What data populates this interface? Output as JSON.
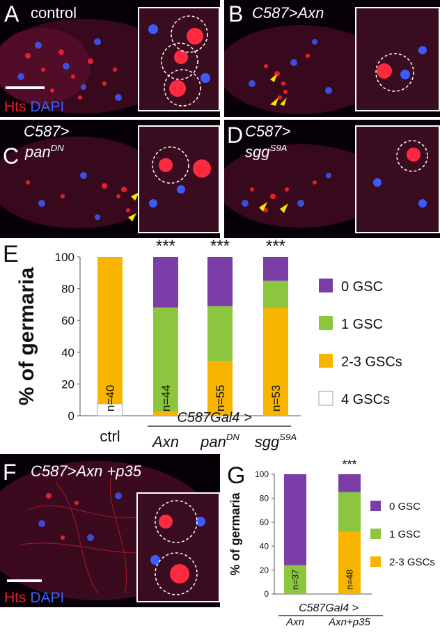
{
  "panels": {
    "A": {
      "letter": "A",
      "title": "control",
      "stain_hts": "Hts",
      "stain_dapi": "DAPI"
    },
    "B": {
      "letter": "B",
      "title": "C587>Axn"
    },
    "C": {
      "letter": "C",
      "title_line1": "C587>",
      "title_base": "pan",
      "title_sup": "DN"
    },
    "D": {
      "letter": "D",
      "title_line1": "C587>",
      "title_base": "sgg",
      "title_sup": "S9A"
    },
    "F": {
      "letter": "F",
      "title": "C587>Axn +p35",
      "stain_hts": "Hts",
      "stain_dapi": "DAPI"
    }
  },
  "colors": {
    "gsc0": "#7a3ea6",
    "gsc1": "#8cc63f",
    "gsc23": "#f7b500",
    "gsc4": "#ffffff"
  },
  "chart_data": [
    {
      "panel": "E",
      "type": "bar",
      "stacked": true,
      "ylabel": "% of germaria",
      "ylim": [
        0,
        100
      ],
      "yticks": [
        0,
        20,
        40,
        60,
        80,
        100
      ],
      "categories": [
        "ctrl",
        "Axn",
        "panDN",
        "sggS9A"
      ],
      "category_labels": [
        {
          "base": "ctrl",
          "sup": ""
        },
        {
          "base": "Axn",
          "sup": ""
        },
        {
          "base": "pan",
          "sup": "DN"
        },
        {
          "base": "sgg",
          "sup": "S9A"
        }
      ],
      "group_label": "C587Gal4 >",
      "series": [
        {
          "name": "4 GSCs",
          "values": [
            7.5,
            0,
            0,
            0
          ]
        },
        {
          "name": "2-3 GSCs",
          "values": [
            92.5,
            2.3,
            34.5,
            68
          ]
        },
        {
          "name": "1 GSC",
          "values": [
            0,
            65.9,
            34.5,
            17
          ]
        },
        {
          "name": "0 GSC",
          "values": [
            0,
            31.8,
            31.0,
            15
          ]
        }
      ],
      "n_labels": [
        "n=40",
        "n=44",
        "n=55",
        "n=53"
      ],
      "significance": [
        "",
        "***",
        "***",
        "***"
      ],
      "legend_order": [
        "0 GSC",
        "1 GSC",
        "2-3 GSCs",
        "4 GSCs"
      ],
      "legend_placement": "right"
    },
    {
      "panel": "G",
      "type": "bar",
      "stacked": true,
      "ylabel": "% of germaria",
      "ylim": [
        0,
        100
      ],
      "yticks": [
        0,
        20,
        40,
        60,
        80,
        100
      ],
      "categories": [
        "Axn",
        "Axn+p35"
      ],
      "category_labels": [
        {
          "base": "Axn",
          "sup": ""
        },
        {
          "base": "Axn+p35",
          "sup": ""
        }
      ],
      "group_label": "C587Gal4 >",
      "series": [
        {
          "name": "2-3 GSCs",
          "values": [
            0,
            52
          ]
        },
        {
          "name": "1 GSC",
          "values": [
            24,
            33
          ]
        },
        {
          "name": "0 GSC",
          "values": [
            76,
            15
          ]
        }
      ],
      "n_labels": [
        "n=37",
        "n=48"
      ],
      "significance": [
        "",
        "***"
      ],
      "legend_order": [
        "0 GSC",
        "1 GSC",
        "2-3 GSCs"
      ],
      "legend_placement": "right"
    }
  ]
}
